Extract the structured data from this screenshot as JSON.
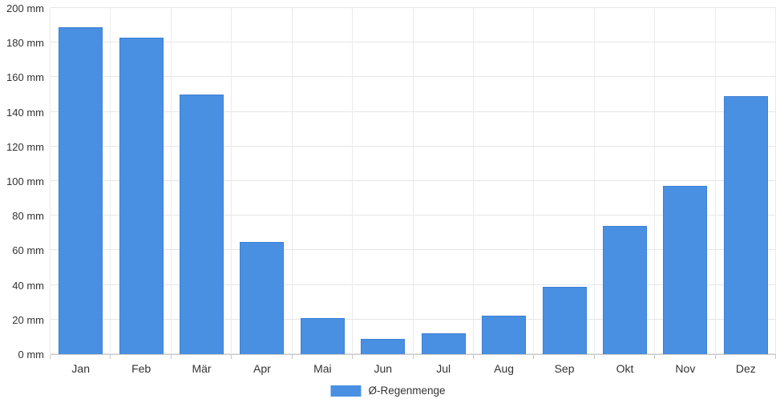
{
  "chart_data": {
    "type": "bar",
    "categories": [
      "Jan",
      "Feb",
      "Mär",
      "Apr",
      "Mai",
      "Jun",
      "Jul",
      "Aug",
      "Sep",
      "Okt",
      "Nov",
      "Dez"
    ],
    "values": [
      189,
      183,
      150,
      65,
      21,
      9,
      12,
      22,
      39,
      74,
      97,
      149
    ],
    "series_name": "Ø-Regenmenge",
    "title": "",
    "xlabel": "",
    "ylabel": "",
    "unit": "mm",
    "ylim": [
      0,
      200
    ],
    "ytick_step": 20,
    "ytick_suffix": " mm",
    "grid": true,
    "legend_position": "bottom",
    "bar_color": "#4a90e2",
    "bar_border_color": "#3d80d4",
    "grid_color": "#e6e6e6",
    "axis_color": "#c8c8c8",
    "text_color": "#333333"
  },
  "legend": {
    "label": "Ø-Regenmenge"
  }
}
